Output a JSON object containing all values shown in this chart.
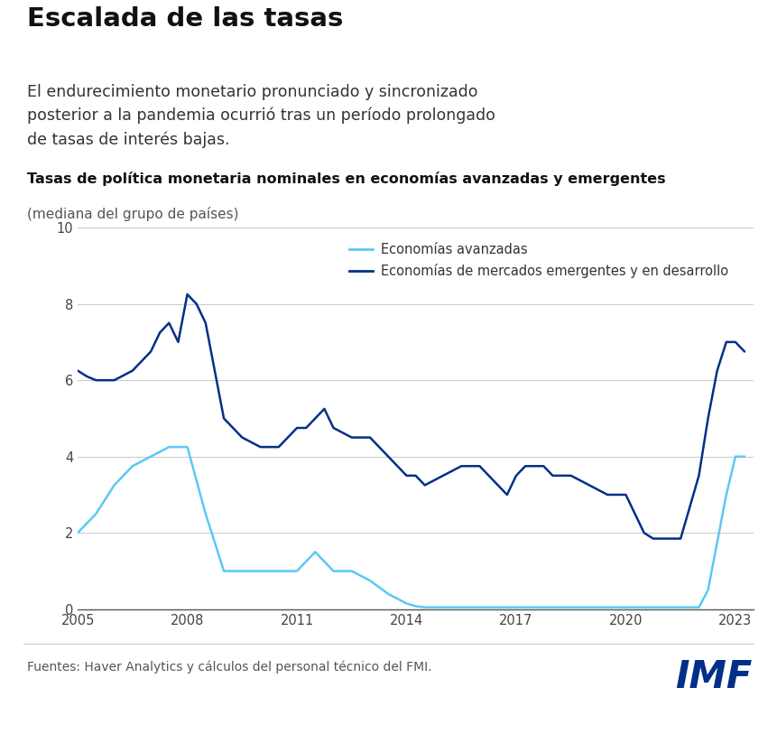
{
  "title": "Escalada de las tasas",
  "subtitle": "El endurecimiento monetario pronunciado y sincronizado\nposterior a la pandemia ocurrió tras un período prolongado\nde tasas de interés bajas.",
  "chart_title": "Tasas de política monetaria nominales en economías avanzadas y emergentes",
  "chart_subtitle": "(mediana del grupo de países)",
  "source": "Fuentes: Haver Analytics y cálculos del personal técnico del FMI.",
  "legend_advanced": "Economías avanzadas",
  "legend_emerging": "Economías de mercados emergentes y en desarrollo",
  "color_advanced": "#5BC8F5",
  "color_emerging": "#003087",
  "ylim": [
    0,
    10
  ],
  "yticks": [
    0,
    2,
    4,
    6,
    8,
    10
  ],
  "xticks": [
    2005,
    2008,
    2011,
    2014,
    2017,
    2020,
    2023
  ],
  "background": "#FFFFFF",
  "advanced_x": [
    2005,
    2005.5,
    2006,
    2006.5,
    2007,
    2007.5,
    2008,
    2008.5,
    2009,
    2009.25,
    2009.5,
    2010,
    2010.5,
    2011,
    2011.25,
    2011.5,
    2011.75,
    2012,
    2012.5,
    2013,
    2013.5,
    2014,
    2014.25,
    2014.5,
    2015,
    2015.5,
    2016,
    2016.5,
    2017,
    2017.5,
    2018,
    2018.5,
    2019,
    2019.5,
    2020,
    2020.5,
    2021,
    2021.5,
    2021.75,
    2022,
    2022.25,
    2022.5,
    2022.75,
    2023,
    2023.25
  ],
  "advanced_y": [
    2.0,
    2.5,
    3.25,
    3.75,
    4.0,
    4.25,
    4.25,
    2.5,
    1.0,
    1.0,
    1.0,
    1.0,
    1.0,
    1.0,
    1.25,
    1.5,
    1.25,
    1.0,
    1.0,
    0.75,
    0.4,
    0.15,
    0.08,
    0.05,
    0.05,
    0.05,
    0.05,
    0.05,
    0.05,
    0.05,
    0.05,
    0.05,
    0.05,
    0.05,
    0.05,
    0.05,
    0.05,
    0.05,
    0.05,
    0.05,
    0.5,
    1.75,
    3.0,
    4.0,
    4.0
  ],
  "emerging_x": [
    2005,
    2005.25,
    2005.5,
    2006,
    2006.5,
    2007,
    2007.25,
    2007.5,
    2007.75,
    2008,
    2008.25,
    2008.5,
    2009,
    2009.5,
    2010,
    2010.5,
    2011,
    2011.25,
    2011.5,
    2011.75,
    2012,
    2012.5,
    2013,
    2013.25,
    2013.5,
    2013.75,
    2014,
    2014.25,
    2014.5,
    2015,
    2015.5,
    2016,
    2016.25,
    2016.5,
    2016.75,
    2017,
    2017.25,
    2017.5,
    2017.75,
    2018,
    2018.25,
    2018.5,
    2019,
    2019.5,
    2020,
    2020.25,
    2020.5,
    2020.75,
    2021,
    2021.5,
    2022,
    2022.25,
    2022.5,
    2022.75,
    2023,
    2023.25
  ],
  "emerging_y": [
    6.25,
    6.1,
    6.0,
    6.0,
    6.25,
    6.75,
    7.25,
    7.5,
    7.0,
    8.25,
    8.0,
    7.5,
    5.0,
    4.5,
    4.25,
    4.25,
    4.75,
    4.75,
    5.0,
    5.25,
    4.75,
    4.5,
    4.5,
    4.25,
    4.0,
    3.75,
    3.5,
    3.5,
    3.25,
    3.5,
    3.75,
    3.75,
    3.5,
    3.25,
    3.0,
    3.5,
    3.75,
    3.75,
    3.75,
    3.5,
    3.5,
    3.5,
    3.25,
    3.0,
    3.0,
    2.5,
    2.0,
    1.85,
    1.85,
    1.85,
    3.5,
    5.0,
    6.25,
    7.0,
    7.0,
    6.75
  ]
}
